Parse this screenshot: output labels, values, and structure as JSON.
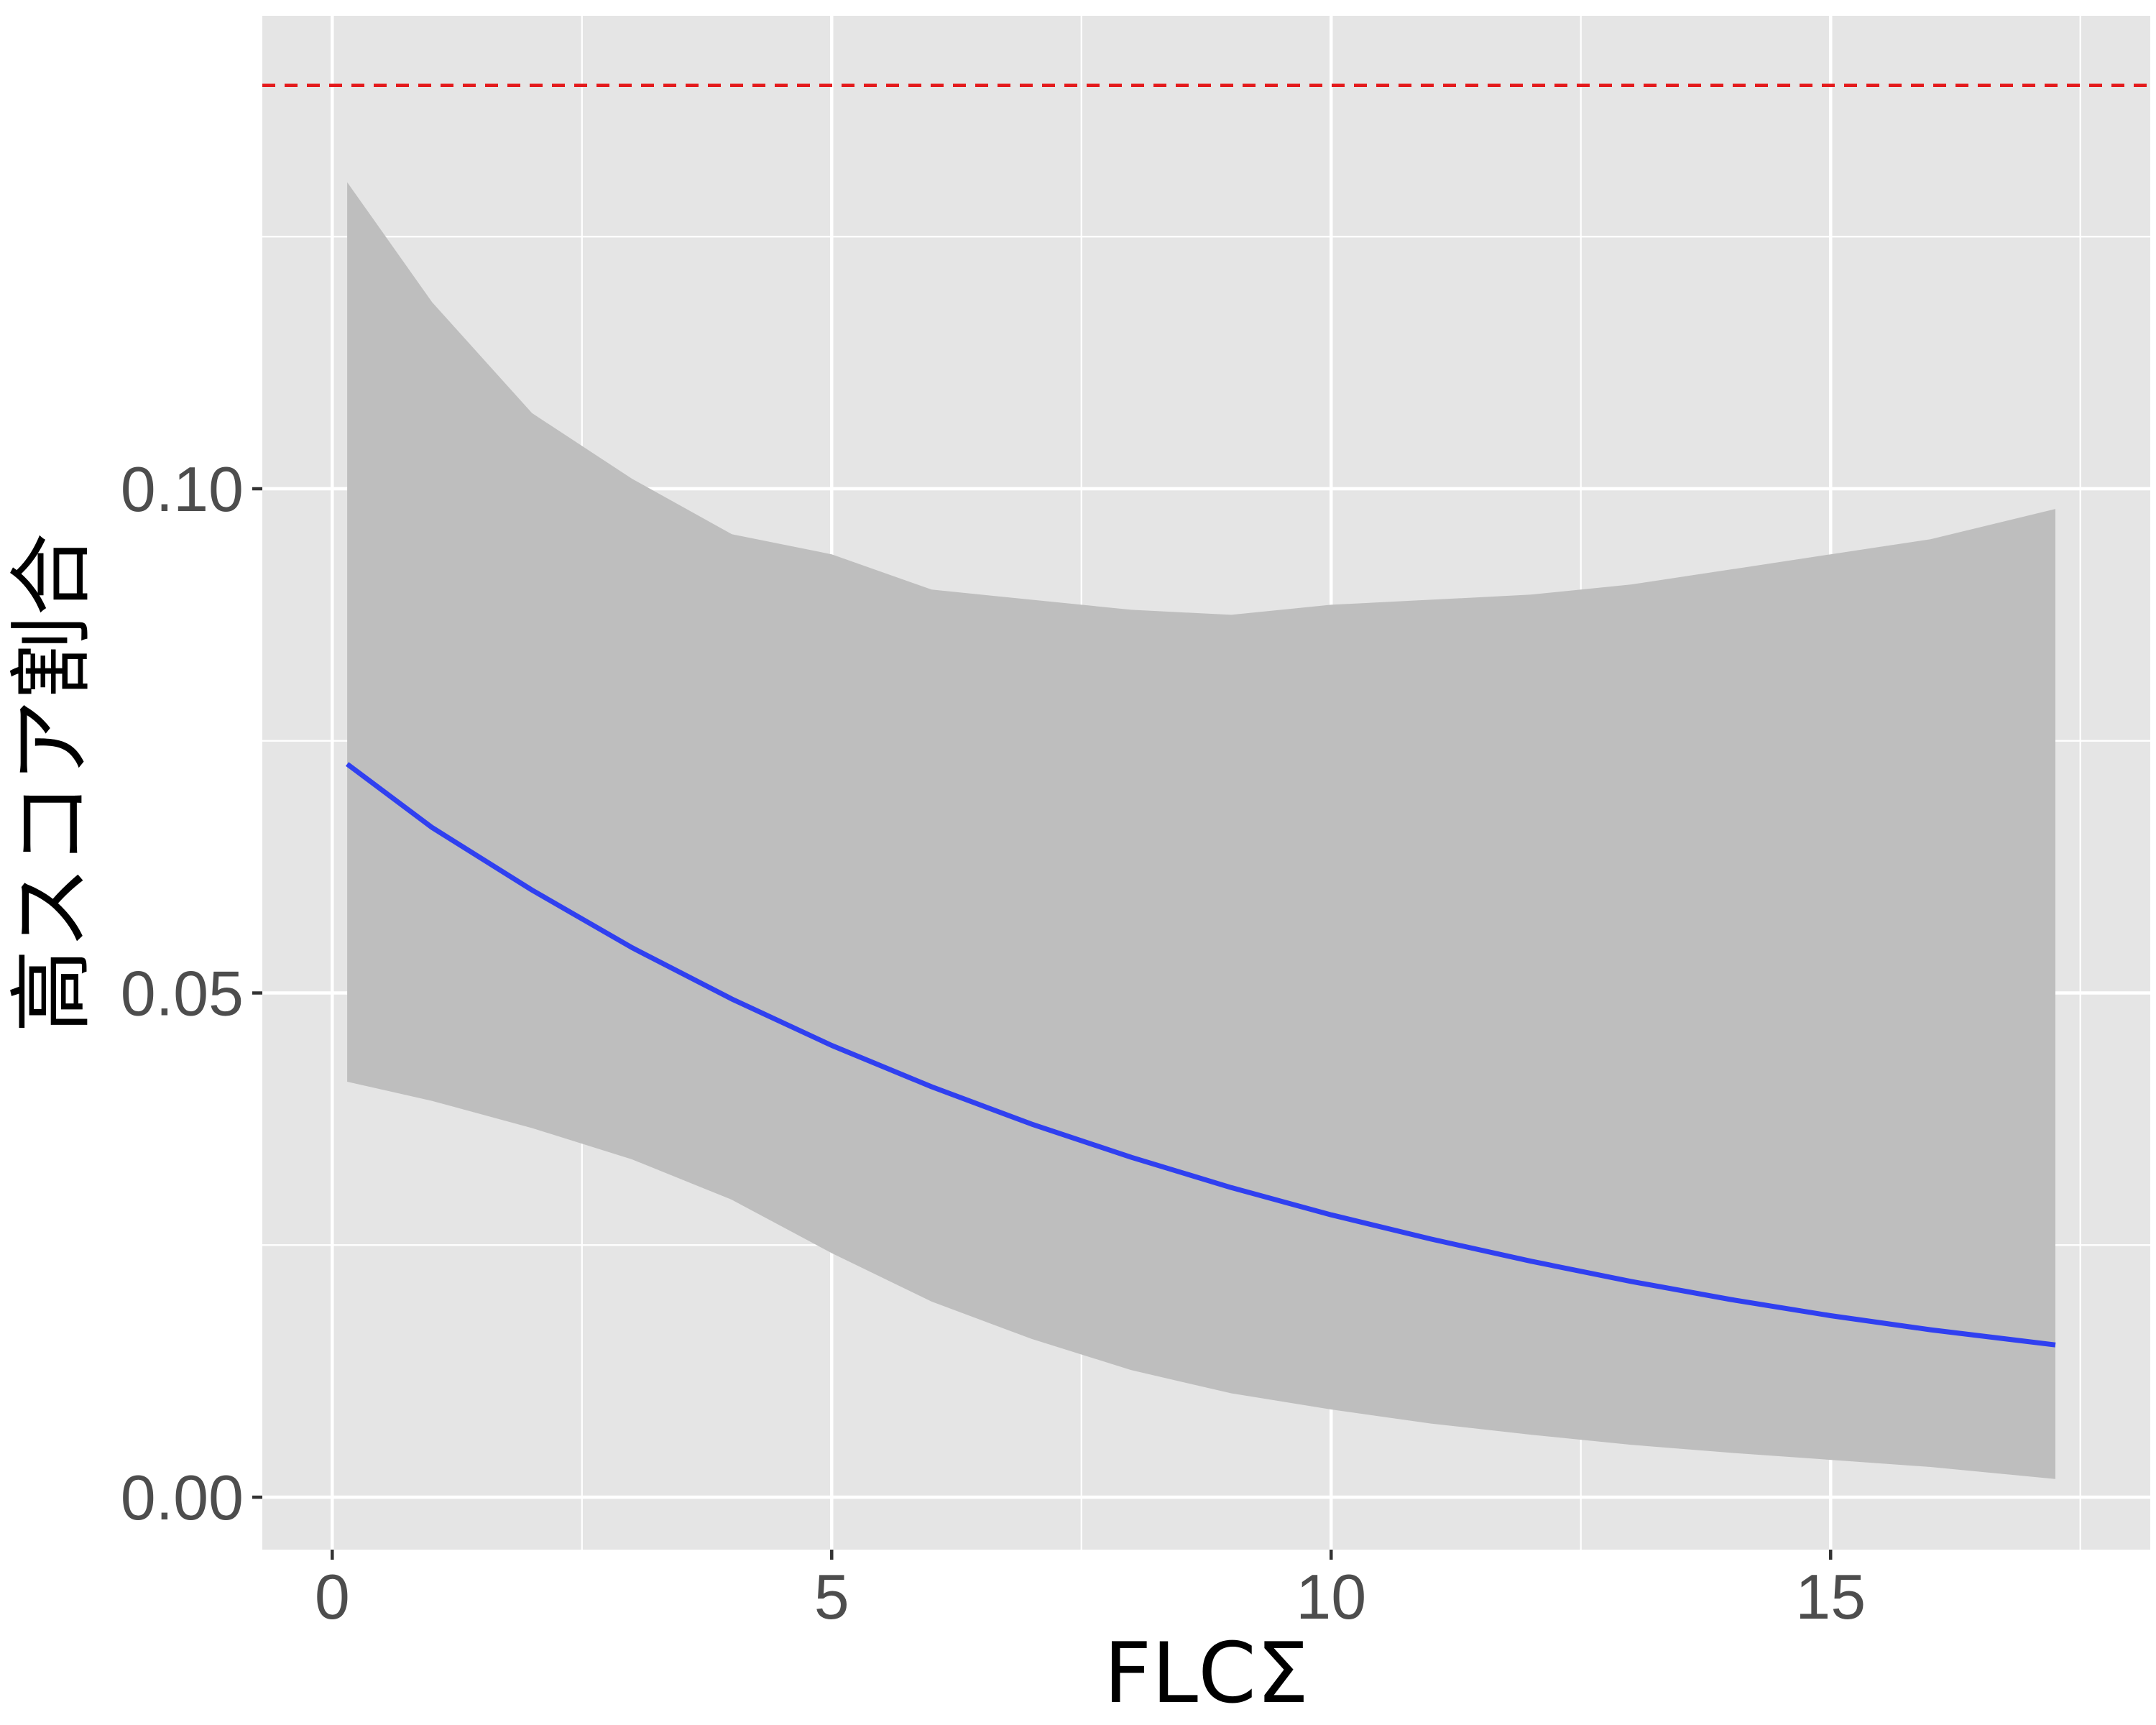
{
  "chart_data": {
    "type": "line",
    "title": "",
    "xlabel": "FLCΣ",
    "ylabel": "高スコア割合",
    "xlim": [
      -0.7,
      18.2
    ],
    "ylim": [
      -0.0052,
      0.1469
    ],
    "x_ticks": [
      0,
      5,
      10,
      15
    ],
    "x_tick_labels": [
      "0",
      "5",
      "10",
      "15"
    ],
    "y_ticks": [
      0.0,
      0.05,
      0.1
    ],
    "y_tick_labels": [
      "0.00",
      "0.05",
      "0.10"
    ],
    "grid": true,
    "legend": "none",
    "colors": {
      "panel": "#e5e5e5",
      "grid": "#ffffff",
      "ribbon": "#bebebe",
      "line": "#3040f0",
      "reference": "#e41a1c"
    },
    "reference_line": {
      "y": 0.14,
      "style": "dashed"
    },
    "series": [
      {
        "x": [
          0.15,
          1,
          2,
          3,
          4,
          5,
          6,
          7,
          8,
          9,
          10,
          11,
          12,
          13,
          14,
          15,
          16,
          17.25
        ],
        "y": [
          0.0727,
          0.0664,
          0.0602,
          0.0545,
          0.0494,
          0.0448,
          0.0407,
          0.037,
          0.0337,
          0.0307,
          0.028,
          0.0256,
          0.0234,
          0.0214,
          0.0196,
          0.018,
          0.0166,
          0.0151
        ],
        "ci_lower": [
          0.0412,
          0.0393,
          0.0366,
          0.0335,
          0.0295,
          0.0242,
          0.0194,
          0.0157,
          0.0126,
          0.0103,
          0.0087,
          0.0073,
          0.0062,
          0.0052,
          0.0044,
          0.0037,
          0.003,
          0.0018
        ],
        "ci_upper": [
          0.1304,
          0.1185,
          0.1075,
          0.101,
          0.0955,
          0.0935,
          0.09,
          0.089,
          0.088,
          0.0875,
          0.0885,
          0.089,
          0.0895,
          0.0905,
          0.092,
          0.0935,
          0.095,
          0.098
        ]
      }
    ]
  }
}
